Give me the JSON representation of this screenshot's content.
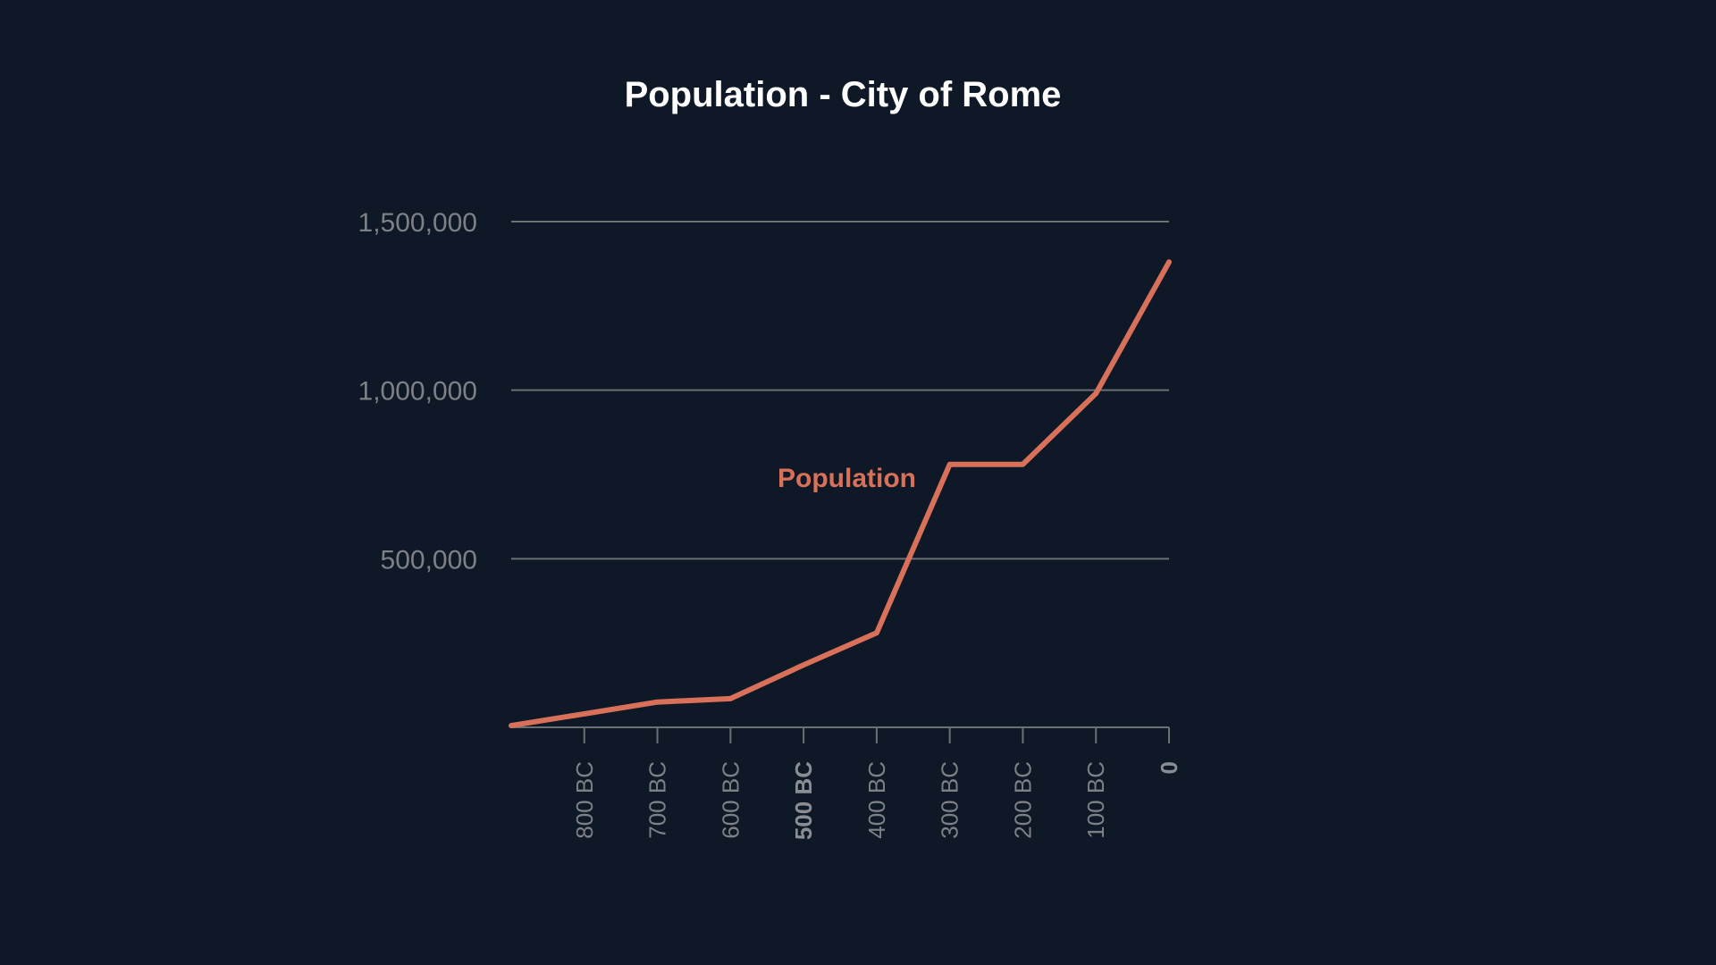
{
  "chart_data": {
    "type": "line",
    "title": "Population - City of Rome",
    "xlabel": "",
    "ylabel": "",
    "x": [
      -900,
      -800,
      -700,
      -600,
      -500,
      -400,
      -300,
      -200,
      -100,
      0
    ],
    "x_tick_values": [
      -800,
      -700,
      -600,
      -500,
      -400,
      -300,
      -200,
      -100,
      0
    ],
    "x_tick_labels": [
      "800 BC",
      "700 BC",
      "600 BC",
      "500 BC",
      "400 BC",
      "300 BC",
      "200 BC",
      "100 BC",
      "0"
    ],
    "x_tick_bold": [
      false,
      false,
      false,
      true,
      false,
      false,
      false,
      false,
      true
    ],
    "xlim": [
      -900,
      0
    ],
    "y_tick_values": [
      500000,
      1000000,
      1500000
    ],
    "y_tick_labels": [
      "500,000",
      "1,000,000",
      "1,500,000"
    ],
    "ylim": [
      0,
      1500000
    ],
    "grid": true,
    "series": [
      {
        "name": "Population",
        "color": "#d8705a",
        "values": [
          5000,
          40000,
          75000,
          85000,
          185000,
          280000,
          780000,
          780000,
          990000,
          1380000
        ]
      }
    ]
  },
  "colors": {
    "background": "#0e1826",
    "grid": "#6b7075",
    "tick_label": "#7d8187",
    "title": "#ffffff"
  }
}
